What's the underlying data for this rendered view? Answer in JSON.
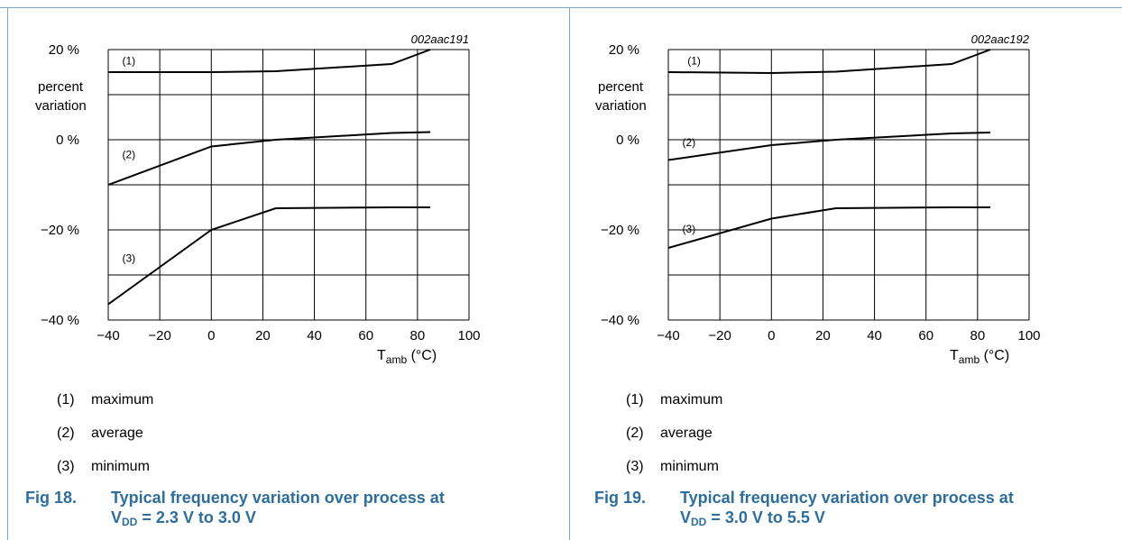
{
  "colors": {
    "caption": "#2e6e9e",
    "frame": "#7aa6c8",
    "line": "#000000"
  },
  "chart_data": [
    {
      "type": "line",
      "code": "002aac191",
      "ylabel": "percent variation",
      "xlim": [
        -40,
        100
      ],
      "ylim": [
        -40,
        20
      ],
      "x_ticks": [
        -40,
        -20,
        0,
        20,
        40,
        60,
        80,
        100
      ],
      "x_tick_labels": [
        "−40",
        "−20",
        "0",
        "20",
        "40",
        "60",
        "80",
        "100"
      ],
      "y_ticks": [
        20,
        0,
        -20,
        -40
      ],
      "y_tick_labels": [
        "20 %",
        "0 %",
        "−20 %",
        "−40 %"
      ],
      "y_grid_step": 10,
      "x_grid_step": 20,
      "grid": true,
      "series": [
        {
          "name": "(1)",
          "x": [
            -40,
            0,
            25,
            70,
            85
          ],
          "values": [
            15,
            15,
            15.2,
            16.8,
            20
          ],
          "label_at": [
            -32,
            17.5
          ]
        },
        {
          "name": "(2)",
          "x": [
            -40,
            0,
            25,
            70,
            85
          ],
          "values": [
            -10,
            -1.5,
            0,
            1.5,
            1.7
          ],
          "label_at": [
            -32,
            -3.3
          ]
        },
        {
          "name": "(3)",
          "x": [
            -40,
            0,
            25,
            70,
            85
          ],
          "values": [
            -36.5,
            -20,
            -15.2,
            -15,
            -15
          ],
          "label_at": [
            -32,
            -26.3
          ]
        }
      ]
    },
    {
      "type": "line",
      "code": "002aac192",
      "ylabel": "percent variation",
      "xlim": [
        -40,
        100
      ],
      "ylim": [
        -40,
        20
      ],
      "x_ticks": [
        -40,
        -20,
        0,
        20,
        40,
        60,
        80,
        100
      ],
      "x_tick_labels": [
        "−40",
        "−20",
        "0",
        "20",
        "40",
        "60",
        "80",
        "100"
      ],
      "y_ticks": [
        20,
        0,
        -20,
        -40
      ],
      "y_tick_labels": [
        "20 %",
        "0 %",
        "−20 %",
        "−40 %"
      ],
      "y_grid_step": 10,
      "x_grid_step": 20,
      "grid": true,
      "series": [
        {
          "name": "(1)",
          "x": [
            -40,
            0,
            25,
            70,
            85
          ],
          "values": [
            15,
            14.8,
            15.1,
            16.8,
            20
          ],
          "label_at": [
            -30,
            17.5
          ]
        },
        {
          "name": "(2)",
          "x": [
            -40,
            0,
            25,
            70,
            85
          ],
          "values": [
            -4.5,
            -1.2,
            0,
            1.4,
            1.6
          ],
          "label_at": [
            -32,
            -0.6
          ]
        },
        {
          "name": "(3)",
          "x": [
            -40,
            0,
            25,
            70,
            85
          ],
          "values": [
            -24,
            -17.5,
            -15.2,
            -15,
            -15
          ],
          "label_at": [
            -32,
            -19.8
          ]
        }
      ]
    }
  ],
  "panels": [
    {
      "x_label_main": "T",
      "x_label_sub": "amb",
      "x_label_unit": " (°C)",
      "notes": [
        {
          "num": "(1)",
          "text": "maximum"
        },
        {
          "num": "(2)",
          "text": "average"
        },
        {
          "num": "(3)",
          "text": "minimum"
        }
      ],
      "caption_fig": "Fig 18.",
      "caption_title": "Typical frequency variation over process at",
      "caption_v": "V",
      "caption_v_sub": "DD",
      "caption_rest": " = 2.3 V to 3.0 V"
    },
    {
      "x_label_main": "T",
      "x_label_sub": "amb",
      "x_label_unit": " (°C)",
      "notes": [
        {
          "num": "(1)",
          "text": "maximum"
        },
        {
          "num": "(2)",
          "text": "average"
        },
        {
          "num": "(3)",
          "text": "minimum"
        }
      ],
      "caption_fig": "Fig 19.",
      "caption_title": "Typical frequency variation over process at",
      "caption_v": "V",
      "caption_v_sub": "DD",
      "caption_rest": " = 3.0 V to 5.5 V"
    }
  ]
}
